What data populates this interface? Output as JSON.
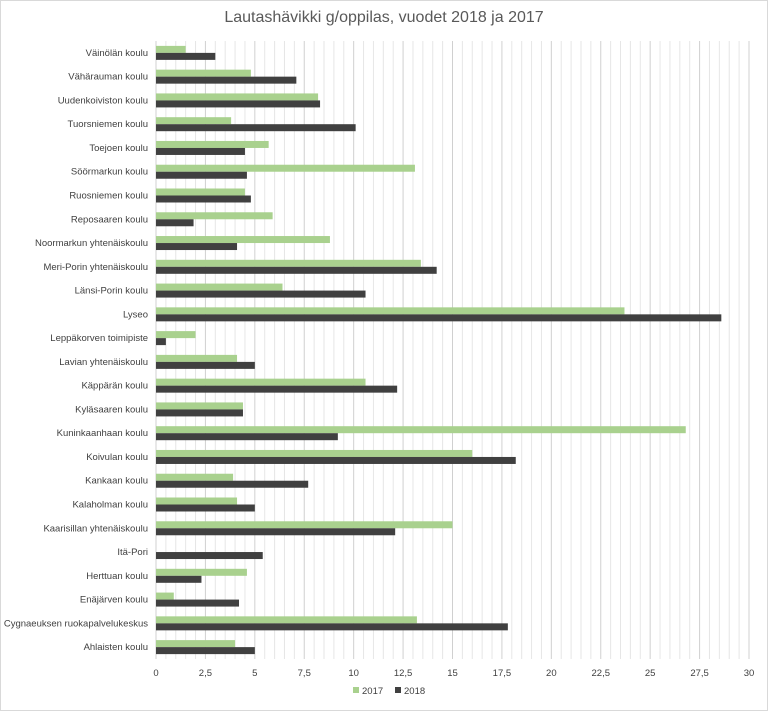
{
  "chart_data": {
    "type": "bar",
    "orientation": "horizontal",
    "title": "Lautashävikki g/oppilas, vuodet 2018 ja 2017",
    "categories": [
      "Väinölän koulu",
      "Vähärauman koulu",
      "Uudenkoiviston koulu",
      "Tuorsniemen koulu",
      "Toejoen koulu",
      "Söörmarkun koulu",
      "Ruosniemen koulu",
      "Reposaaren koulu",
      "Noormarkun yhtenäiskoulu",
      "Meri-Porin yhtenäiskoulu",
      "Länsi-Porin koulu",
      "Lyseo",
      "Leppäkorven toimipiste",
      "Lavian yhtenäiskoulu",
      "Käppärän koulu",
      "Kyläsaaren koulu",
      "Kuninkaanhaan koulu",
      "Koivulan koulu",
      "Kankaan koulu",
      "Kalaholman koulu",
      "Kaarisillan yhtenäiskoulu",
      "Itä-Pori",
      "Herttuan koulu",
      "Enäjärven koulu",
      "Cygnaeuksen ruokapalvelukeskus",
      "Ahlaisten koulu"
    ],
    "series": [
      {
        "name": "2017",
        "color": "#a9d18e",
        "values": [
          1.5,
          4.8,
          8.2,
          3.8,
          5.7,
          13.1,
          4.5,
          5.9,
          8.8,
          13.4,
          6.4,
          23.7,
          2.0,
          4.1,
          10.6,
          4.4,
          26.8,
          16.0,
          3.9,
          4.1,
          15.0,
          0,
          4.6,
          0.9,
          13.2,
          4.0
        ]
      },
      {
        "name": "2018",
        "color": "#404040",
        "values": [
          3.0,
          7.1,
          8.3,
          10.1,
          4.5,
          4.6,
          4.8,
          1.9,
          4.1,
          14.2,
          10.6,
          28.6,
          0.5,
          5.0,
          12.2,
          4.4,
          9.2,
          18.2,
          7.7,
          5.0,
          12.1,
          5.4,
          2.3,
          4.2,
          17.8,
          5.0
        ]
      }
    ],
    "xlim": [
      0,
      30
    ],
    "xticks": [
      "0",
      "2,5",
      "5",
      "7,5",
      "10",
      "12,5",
      "15",
      "17,5",
      "20",
      "22,5",
      "25",
      "27,5",
      "30"
    ],
    "gridlines": true,
    "legend_position": "bottom"
  }
}
